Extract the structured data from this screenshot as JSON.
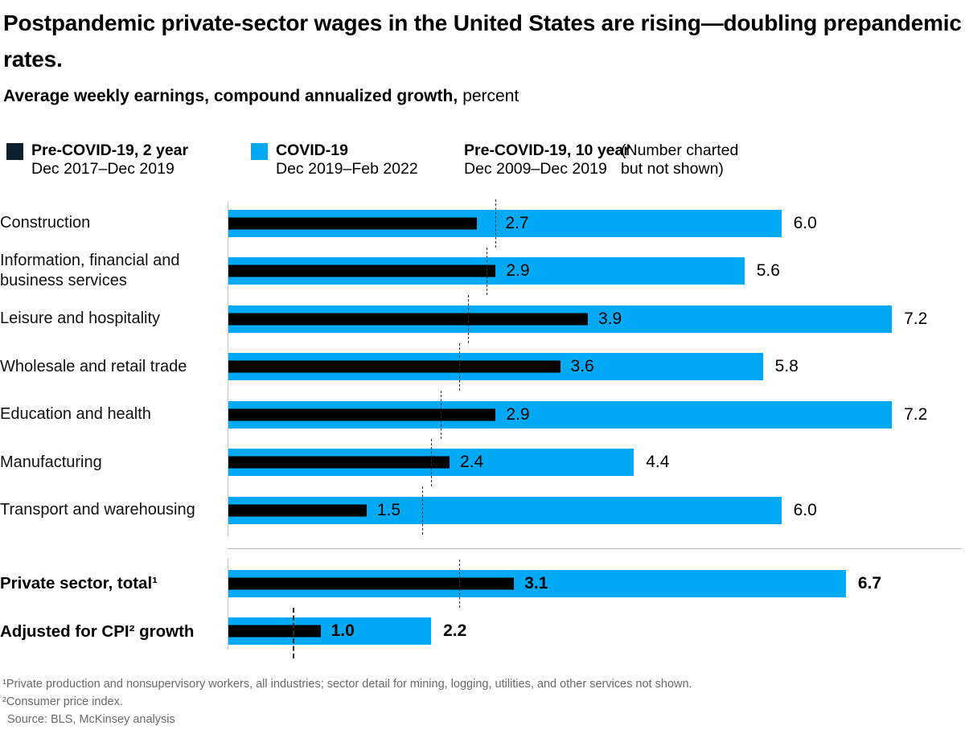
{
  "title": "Postpandemic private-sector wages in the United States are rising—doubling prepandemic rates.",
  "subtitle": {
    "bold": "Average weekly earnings, compound annualized growth,",
    "unit": "percent"
  },
  "legend": {
    "items": [
      {
        "label": "Pre-COVID-19, 2 year",
        "sublabel": "Dec 2017–Dec 2019",
        "swatch": "dark"
      },
      {
        "label": "COVID-19",
        "sublabel": "Dec 2019–Feb 2022",
        "swatch": "blue"
      },
      {
        "label": "Pre-COVID-19, 10 year",
        "sublabel": "Dec 2009–Dec 2019",
        "swatch": "none"
      }
    ],
    "note_line1": "(Number charted",
    "note_line2": "but not shown)"
  },
  "chart_data": {
    "type": "bar",
    "orientation": "horizontal",
    "title": "Average weekly earnings, compound annualized growth, percent",
    "xlim": [
      0,
      8
    ],
    "grid": false,
    "legend_position": "top",
    "series_names": [
      "Pre-COVID-19, 2 year, Dec 2017–Dec 2019",
      "COVID-19, Dec 2019–Feb 2022",
      "Pre-COVID-19, 10 year, Dec 2009–Dec 2019 (number charted but not shown)"
    ],
    "sector_rows": [
      {
        "category": "Construction",
        "pre_covid_2yr": 2.7,
        "covid": 6.0,
        "pre_covid_10yr": 2.9,
        "emphasis": false
      },
      {
        "category": "Information, financial and business services",
        "pre_covid_2yr": 2.9,
        "covid": 5.6,
        "pre_covid_10yr": 2.8,
        "emphasis": false
      },
      {
        "category": "Leisure and hospitality",
        "pre_covid_2yr": 3.9,
        "covid": 7.2,
        "pre_covid_10yr": 2.6,
        "emphasis": false
      },
      {
        "category": "Wholesale and retail trade",
        "pre_covid_2yr": 3.6,
        "covid": 5.8,
        "pre_covid_10yr": 2.5,
        "emphasis": false
      },
      {
        "category": "Education and health",
        "pre_covid_2yr": 2.9,
        "covid": 7.2,
        "pre_covid_10yr": 2.3,
        "emphasis": false
      },
      {
        "category": "Manufacturing",
        "pre_covid_2yr": 2.4,
        "covid": 4.4,
        "pre_covid_10yr": 2.2,
        "emphasis": false
      },
      {
        "category": "Transport and warehousing",
        "pre_covid_2yr": 1.5,
        "covid": 6.0,
        "pre_covid_10yr": 2.1,
        "emphasis": false
      }
    ],
    "total_rows": [
      {
        "category": "Private sector, total¹",
        "pre_covid_2yr": 3.1,
        "covid": 6.7,
        "pre_covid_10yr": 2.5,
        "emphasis": true
      },
      {
        "category": "Adjusted for CPI² growth",
        "pre_covid_2yr": 1.0,
        "covid": 2.2,
        "pre_covid_10yr": 0.7,
        "emphasis": true
      }
    ]
  },
  "footnotes": [
    "¹Private production and nonsupervisory workers, all industries; sector detail for mining, logging, utilities, and other services not shown.",
    "²Consumer price index.",
    "Source: BLS, McKinsey analysis"
  ],
  "colors": {
    "covid_blue": "#00A9F4",
    "pre_covid_dark": "#000000",
    "legend_dark_swatch": "#0F212E",
    "ten_year_line": "#2E2E2E",
    "axis_gray": "#C9C9C9",
    "separator_gray": "#B5B5B5",
    "footnote_gray": "#686868"
  }
}
